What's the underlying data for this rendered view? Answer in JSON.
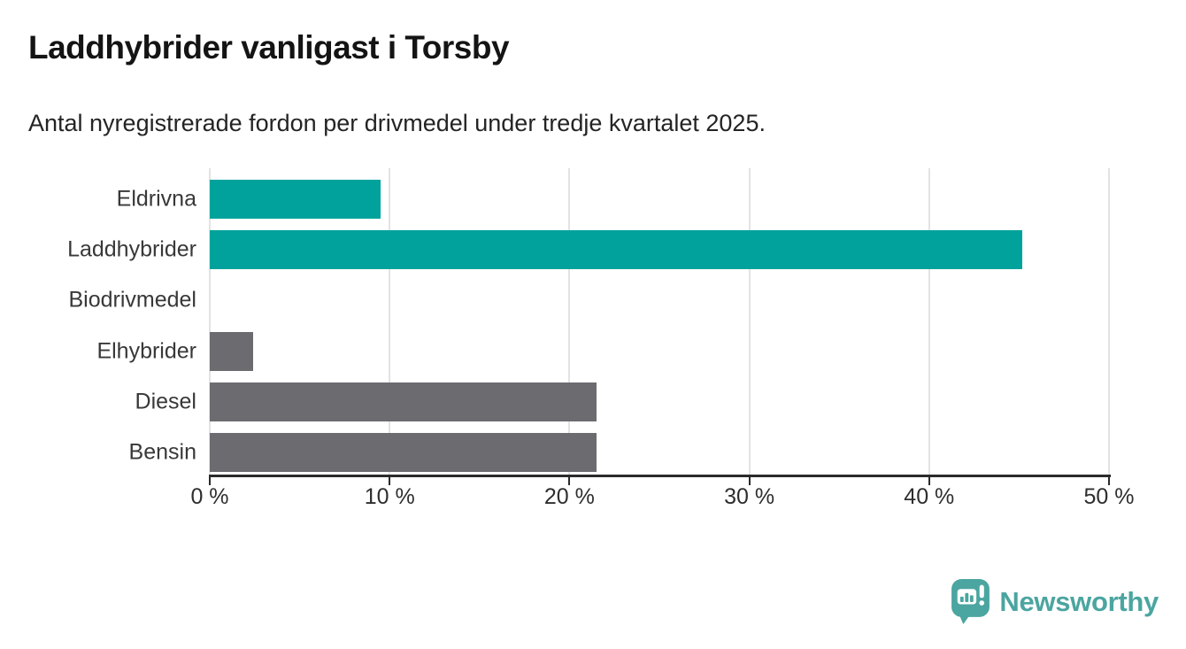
{
  "header": {
    "title": "Laddhybrider vanligast i Torsby",
    "subtitle": "Antal nyregistrerade fordon per drivmedel under tredje kvartalet 2025."
  },
  "chart_data": {
    "type": "bar",
    "orientation": "horizontal",
    "title": "Laddhybrider vanligast i Torsby",
    "subtitle": "Antal nyregistrerade fordon per drivmedel under tredje kvartalet 2025.",
    "categories": [
      "Eldrivna",
      "Laddhybrider",
      "Biodrivmedel",
      "Elhybrider",
      "Diesel",
      "Bensin"
    ],
    "values": [
      9.5,
      45.2,
      0,
      2.4,
      21.5,
      21.5
    ],
    "unit": "%",
    "bar_colors": [
      "#00a29b",
      "#00a29b",
      "#6c6c70",
      "#6c6c70",
      "#6c6c70",
      "#6c6c70"
    ],
    "xlim": [
      0,
      50
    ],
    "x_ticks": [
      0,
      10,
      20,
      30,
      40,
      50
    ],
    "x_tick_labels": [
      "0 %",
      "10 %",
      "20 %",
      "30 %",
      "40 %",
      "50 %"
    ],
    "grid": "vertical-gridlines-behind-bars",
    "legend": "none",
    "xlabel": "",
    "ylabel": ""
  },
  "footer": {
    "brand": "Newsworthy",
    "logo_icon": "newsworthy-speech-bubble-bar-chart-icon"
  },
  "colors": {
    "accent_teal": "#00a29b",
    "bar_gray": "#6c6c70",
    "brand_teal": "#4ba5a0",
    "gridline": "#e3e3e3",
    "axis": "#2b2b2b",
    "background": "#ffffff"
  }
}
